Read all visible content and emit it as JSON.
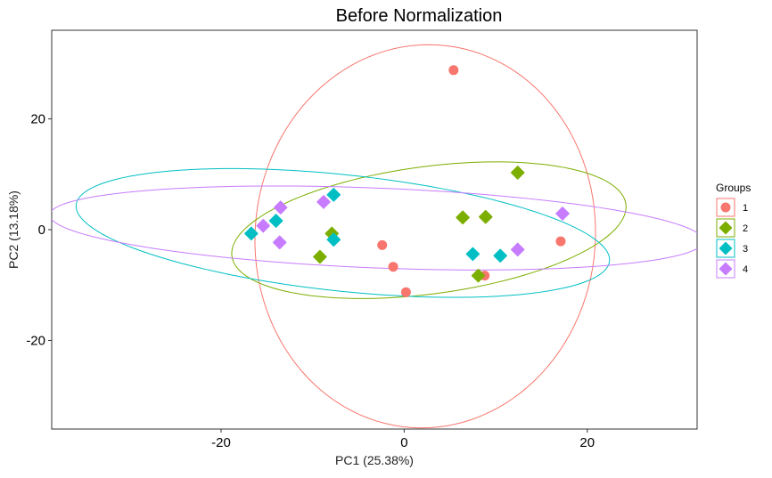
{
  "chart_data": {
    "type": "scatter",
    "title": "Before Normalization",
    "xlabel": "PC1 (25.38%)",
    "ylabel": "PC2 (13.18%)",
    "xlim": [
      -38.5,
      32
    ],
    "ylim": [
      -36,
      36
    ],
    "xticks": [
      -20,
      0,
      20
    ],
    "yticks": [
      -20,
      0,
      20
    ],
    "xtick_labels": [
      "-20",
      "0",
      "20"
    ],
    "ytick_labels": [
      "-20",
      "0",
      "20"
    ],
    "grid": false,
    "legend": {
      "title": "Groups",
      "placement": "right"
    },
    "series": [
      {
        "name": "1",
        "color": "#F8766D",
        "marker": "circle",
        "points": [
          {
            "x": 5.4,
            "y": 28.8
          },
          {
            "x": -2.4,
            "y": -2.8
          },
          {
            "x": -1.2,
            "y": -6.7
          },
          {
            "x": 0.2,
            "y": -11.3
          },
          {
            "x": 8.8,
            "y": -8.3
          },
          {
            "x": 17.1,
            "y": -2.1
          }
        ],
        "ellipse": {
          "cx": 2.3,
          "cy": -1.2,
          "rx": 18.6,
          "ry": 34.6,
          "angle_deg": -0.9
        }
      },
      {
        "name": "2",
        "color": "#7CAE00",
        "marker": "diamond",
        "points": [
          {
            "x": 12.4,
            "y": 10.3
          },
          {
            "x": 6.4,
            "y": 2.2
          },
          {
            "x": 8.9,
            "y": 2.3
          },
          {
            "x": -7.9,
            "y": -0.7
          },
          {
            "x": -9.2,
            "y": -4.9
          },
          {
            "x": 8.1,
            "y": -8.3
          }
        ],
        "ellipse": {
          "cx": 2.7,
          "cy": -0.1,
          "rx": 22.1,
          "ry": 11.3,
          "angle_deg": 15.1
        }
      },
      {
        "name": "3",
        "color": "#00BFC4",
        "marker": "diamond",
        "points": [
          {
            "x": -7.7,
            "y": 6.3
          },
          {
            "x": -14.0,
            "y": 1.6
          },
          {
            "x": -16.7,
            "y": -0.7
          },
          {
            "x": -7.7,
            "y": -1.8
          },
          {
            "x": 7.5,
            "y": -4.4
          },
          {
            "x": 10.5,
            "y": -4.7
          }
        ],
        "ellipse": {
          "cx": -6.7,
          "cy": -0.6,
          "rx": 29.6,
          "ry": 10.4,
          "angle_deg": -10.8
        }
      },
      {
        "name": "4",
        "color": "#C77CFF",
        "marker": "diamond",
        "points": [
          {
            "x": -13.5,
            "y": 4.0
          },
          {
            "x": -8.8,
            "y": 5.0
          },
          {
            "x": -15.4,
            "y": 0.7
          },
          {
            "x": -13.6,
            "y": -2.3
          },
          {
            "x": 12.4,
            "y": -3.6
          },
          {
            "x": 17.3,
            "y": 2.9
          }
        ],
        "ellipse": {
          "cx": -3.0,
          "cy": 0.3,
          "rx": 35.8,
          "ry": 7.2,
          "angle_deg": -3.9
        }
      }
    ]
  }
}
